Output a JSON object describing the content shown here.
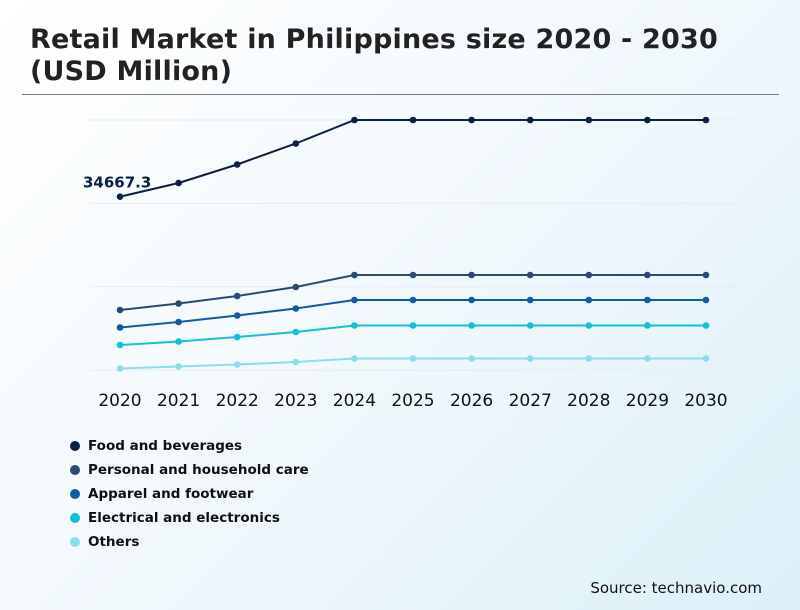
{
  "title": "Retail Market in Philippines size 2020 - 2030 (USD Million)",
  "source": "Source: technavio.com",
  "chart_data": {
    "type": "line",
    "x": [
      2020,
      2021,
      2022,
      2023,
      2024,
      2025,
      2026,
      2027,
      2028,
      2029,
      2030
    ],
    "ylim": [
      0,
      50000
    ],
    "grid": true,
    "legend_position": "bottom-left",
    "annotations": [
      {
        "x": 2020,
        "series": "Food and beverages",
        "text": "34667.3"
      }
    ],
    "series": [
      {
        "name": "Food and beverages",
        "color": "#0c1f45",
        "values": [
          34667.3,
          37400,
          41100,
          45300,
          50000,
          50000,
          50000,
          50000,
          50000,
          50000,
          50000
        ]
      },
      {
        "name": "Personal and household care",
        "color": "#2c4a78",
        "values": [
          12000,
          13300,
          14800,
          16600,
          19000,
          19000,
          19000,
          19000,
          19000,
          19000,
          19000
        ]
      },
      {
        "name": "Apparel and footwear",
        "color": "#1459a8",
        "values": [
          8500,
          9600,
          10900,
          12300,
          14000,
          14000,
          14000,
          14000,
          14000,
          14000,
          14000
        ]
      },
      {
        "name": "Electrical and electronics",
        "color": "#14bfd8",
        "values": [
          5000,
          5700,
          6600,
          7600,
          8900,
          8900,
          8900,
          8900,
          8900,
          8900,
          8900
        ]
      },
      {
        "name": "Others",
        "color": "#8cdcee",
        "values": [
          300,
          700,
          1100,
          1600,
          2300,
          2300,
          2300,
          2300,
          2300,
          2300,
          2300
        ]
      }
    ]
  }
}
